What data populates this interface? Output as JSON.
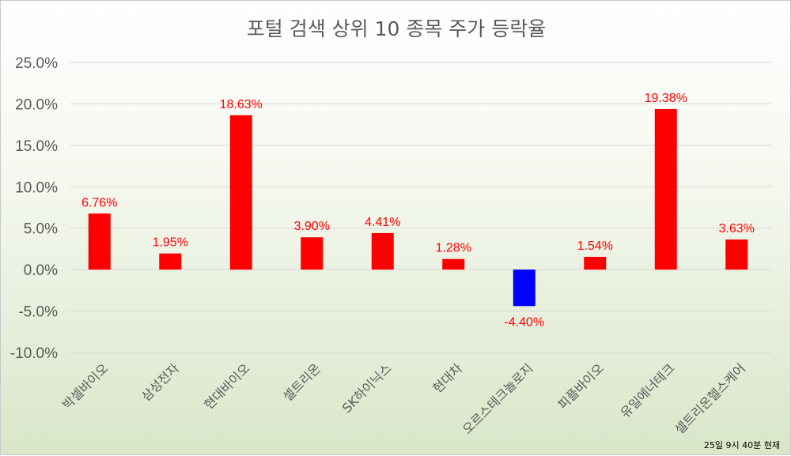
{
  "chart_data": {
    "type": "bar",
    "title": "포털 검색 상위 10 종목 주가 등락율",
    "categories": [
      "박셀바이오",
      "삼성전자",
      "현대바이오",
      "셀트리온",
      "SK하이닉스",
      "현대차",
      "오르스테크놀로지",
      "피플바이오",
      "유일에너테크",
      "셀트리온헬스케어"
    ],
    "values": [
      6.76,
      1.95,
      18.63,
      3.9,
      4.41,
      1.28,
      -4.4,
      1.54,
      19.38,
      3.63
    ],
    "value_labels": [
      "6.76%",
      "1.95%",
      "18.63%",
      "3.90%",
      "4.41%",
      "1.28%",
      "-4.40%",
      "1.54%",
      "19.38%",
      "3.63%"
    ],
    "y_ticks": [
      25,
      20,
      15,
      10,
      5,
      0,
      -5,
      -10
    ],
    "y_tick_labels": [
      "25.0%",
      "20.0%",
      "15.0%",
      "10.0%",
      "5.0%",
      "0.0%",
      "-5.0%",
      "-10.0%"
    ],
    "ylim": [
      -10,
      25
    ],
    "xlabel": "",
    "ylabel": "",
    "grid": true,
    "colors": {
      "positive": "#ff0000",
      "negative": "#0000ff",
      "label": "#ff0000",
      "grid": "#d9d9d9"
    },
    "annotation": "25일 9시 40분 현재"
  }
}
